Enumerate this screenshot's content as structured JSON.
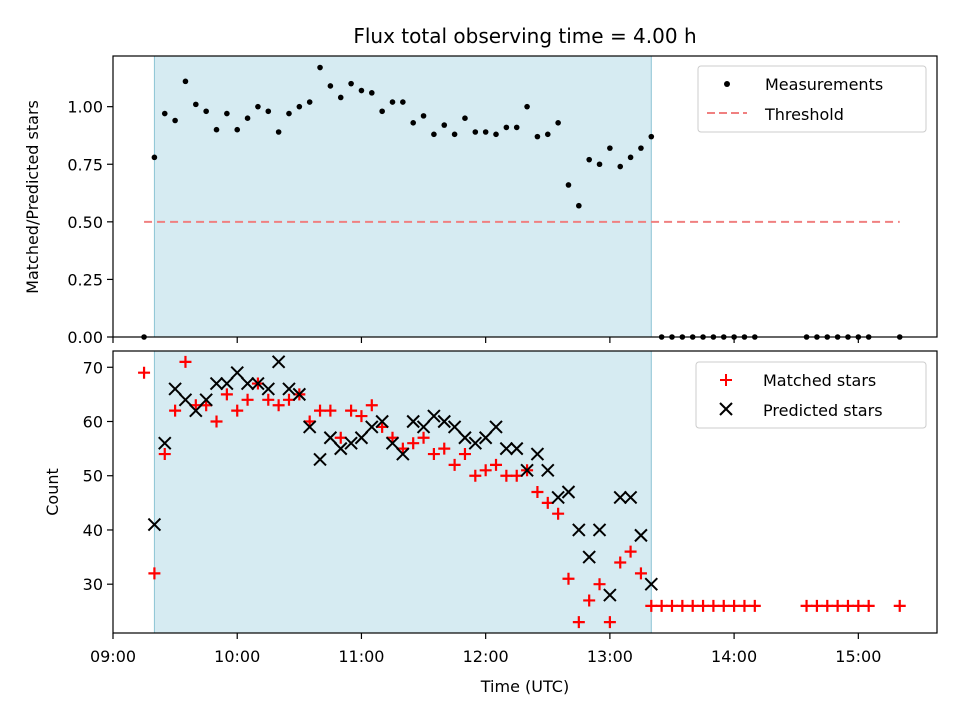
{
  "chart_data": [
    {
      "type": "scatter",
      "title": "Flux total observing time = 4.00 h",
      "ylabel": "Matched/Predicted stars",
      "xlabel": "",
      "ylim": [
        0.0,
        1.22
      ],
      "xlim": [
        "09:00",
        "15:38"
      ],
      "yticks": [
        "0.00",
        "0.25",
        "0.50",
        "0.75",
        "1.00"
      ],
      "shaded_region": {
        "start": "09:20",
        "end": "13:20",
        "color": "#add8e6"
      },
      "legend_position": "top-right",
      "series": [
        {
          "name": "Measurements",
          "marker": "dot",
          "color": "#000000",
          "points": [
            [
              "09:15",
              0.0
            ],
            [
              "09:20",
              0.78
            ],
            [
              "09:25",
              0.97
            ],
            [
              "09:30",
              0.94
            ],
            [
              "09:35",
              1.11
            ],
            [
              "09:40",
              1.01
            ],
            [
              "09:45",
              0.98
            ],
            [
              "09:50",
              0.9
            ],
            [
              "09:55",
              0.97
            ],
            [
              "10:00",
              0.9
            ],
            [
              "10:05",
              0.95
            ],
            [
              "10:10",
              1.0
            ],
            [
              "10:15",
              0.98
            ],
            [
              "10:20",
              0.89
            ],
            [
              "10:25",
              0.97
            ],
            [
              "10:30",
              1.0
            ],
            [
              "10:35",
              1.02
            ],
            [
              "10:40",
              1.17
            ],
            [
              "10:45",
              1.09
            ],
            [
              "10:50",
              1.04
            ],
            [
              "10:55",
              1.1
            ],
            [
              "11:00",
              1.07
            ],
            [
              "11:05",
              1.06
            ],
            [
              "11:10",
              0.98
            ],
            [
              "11:15",
              1.02
            ],
            [
              "11:20",
              1.02
            ],
            [
              "11:25",
              0.93
            ],
            [
              "11:30",
              0.96
            ],
            [
              "11:35",
              0.88
            ],
            [
              "11:40",
              0.92
            ],
            [
              "11:45",
              0.88
            ],
            [
              "11:50",
              0.95
            ],
            [
              "11:55",
              0.89
            ],
            [
              "12:00",
              0.89
            ],
            [
              "12:05",
              0.88
            ],
            [
              "12:10",
              0.91
            ],
            [
              "12:15",
              0.91
            ],
            [
              "12:20",
              1.0
            ],
            [
              "12:25",
              0.87
            ],
            [
              "12:30",
              0.88
            ],
            [
              "12:35",
              0.93
            ],
            [
              "12:40",
              0.66
            ],
            [
              "12:45",
              0.57
            ],
            [
              "12:50",
              0.77
            ],
            [
              "12:55",
              0.75
            ],
            [
              "13:00",
              0.82
            ],
            [
              "13:05",
              0.74
            ],
            [
              "13:10",
              0.78
            ],
            [
              "13:15",
              0.82
            ],
            [
              "13:20",
              0.87
            ],
            [
              "13:25",
              0.0
            ],
            [
              "13:30",
              0.0
            ],
            [
              "13:35",
              0.0
            ],
            [
              "13:40",
              0.0
            ],
            [
              "13:45",
              0.0
            ],
            [
              "13:50",
              0.0
            ],
            [
              "13:55",
              0.0
            ],
            [
              "14:00",
              0.0
            ],
            [
              "14:05",
              0.0
            ],
            [
              "14:10",
              0.0
            ],
            [
              "14:35",
              0.0
            ],
            [
              "14:40",
              0.0
            ],
            [
              "14:45",
              0.0
            ],
            [
              "14:50",
              0.0
            ],
            [
              "14:55",
              0.0
            ],
            [
              "15:00",
              0.0
            ],
            [
              "15:05",
              0.0
            ],
            [
              "15:20",
              0.0
            ]
          ]
        },
        {
          "name": "Threshold",
          "marker": "dashed-line",
          "color": "#f08080",
          "points": [
            [
              "09:15",
              0.5
            ],
            [
              "15:20",
              0.5
            ]
          ]
        }
      ]
    },
    {
      "type": "scatter",
      "title": "",
      "ylabel": "Count",
      "xlabel": "Time (UTC)",
      "ylim": [
        21,
        73
      ],
      "xlim": [
        "09:00",
        "15:38"
      ],
      "yticks": [
        "30",
        "40",
        "50",
        "60",
        "70"
      ],
      "xticks": [
        "09:00",
        "10:00",
        "11:00",
        "12:00",
        "13:00",
        "14:00",
        "15:00"
      ],
      "shaded_region": {
        "start": "09:20",
        "end": "13:20",
        "color": "#add8e6"
      },
      "legend_position": "top-right",
      "series": [
        {
          "name": "Matched stars",
          "marker": "plus",
          "color": "#ff0000",
          "points": [
            [
              "09:15",
              69
            ],
            [
              "09:20",
              32
            ],
            [
              "09:25",
              54
            ],
            [
              "09:30",
              62
            ],
            [
              "09:35",
              71
            ],
            [
              "09:40",
              63
            ],
            [
              "09:45",
              63
            ],
            [
              "09:50",
              60
            ],
            [
              "09:55",
              65
            ],
            [
              "10:00",
              62
            ],
            [
              "10:05",
              64
            ],
            [
              "10:10",
              67
            ],
            [
              "10:15",
              64
            ],
            [
              "10:20",
              63
            ],
            [
              "10:25",
              64
            ],
            [
              "10:30",
              65
            ],
            [
              "10:35",
              60
            ],
            [
              "10:40",
              62
            ],
            [
              "10:45",
              62
            ],
            [
              "10:50",
              57
            ],
            [
              "10:55",
              62
            ],
            [
              "11:00",
              61
            ],
            [
              "11:05",
              63
            ],
            [
              "11:10",
              59
            ],
            [
              "11:15",
              57
            ],
            [
              "11:20",
              55
            ],
            [
              "11:25",
              56
            ],
            [
              "11:30",
              57
            ],
            [
              "11:35",
              54
            ],
            [
              "11:40",
              55
            ],
            [
              "11:45",
              52
            ],
            [
              "11:50",
              54
            ],
            [
              "11:55",
              50
            ],
            [
              "12:00",
              51
            ],
            [
              "12:05",
              52
            ],
            [
              "12:10",
              50
            ],
            [
              "12:15",
              50
            ],
            [
              "12:20",
              51
            ],
            [
              "12:25",
              47
            ],
            [
              "12:30",
              45
            ],
            [
              "12:35",
              43
            ],
            [
              "12:40",
              31
            ],
            [
              "12:45",
              23
            ],
            [
              "12:50",
              27
            ],
            [
              "12:55",
              30
            ],
            [
              "13:00",
              23
            ],
            [
              "13:05",
              34
            ],
            [
              "13:10",
              36
            ],
            [
              "13:15",
              32
            ],
            [
              "13:20",
              26
            ],
            [
              "13:25",
              26
            ],
            [
              "13:30",
              26
            ],
            [
              "13:35",
              26
            ],
            [
              "13:40",
              26
            ],
            [
              "13:45",
              26
            ],
            [
              "13:50",
              26
            ],
            [
              "13:55",
              26
            ],
            [
              "14:00",
              26
            ],
            [
              "14:05",
              26
            ],
            [
              "14:10",
              26
            ],
            [
              "14:35",
              26
            ],
            [
              "14:40",
              26
            ],
            [
              "14:45",
              26
            ],
            [
              "14:50",
              26
            ],
            [
              "14:55",
              26
            ],
            [
              "15:00",
              26
            ],
            [
              "15:05",
              26
            ],
            [
              "15:20",
              26
            ]
          ]
        },
        {
          "name": "Predicted stars",
          "marker": "x",
          "color": "#000000",
          "points": [
            [
              "09:20",
              41
            ],
            [
              "09:25",
              56
            ],
            [
              "09:30",
              66
            ],
            [
              "09:35",
              64
            ],
            [
              "09:40",
              62
            ],
            [
              "09:45",
              64
            ],
            [
              "09:50",
              67
            ],
            [
              "09:55",
              67
            ],
            [
              "10:00",
              69
            ],
            [
              "10:05",
              67
            ],
            [
              "10:10",
              67
            ],
            [
              "10:15",
              66
            ],
            [
              "10:20",
              71
            ],
            [
              "10:25",
              66
            ],
            [
              "10:30",
              65
            ],
            [
              "10:35",
              59
            ],
            [
              "10:40",
              53
            ],
            [
              "10:45",
              57
            ],
            [
              "10:50",
              55
            ],
            [
              "10:55",
              56
            ],
            [
              "11:00",
              57
            ],
            [
              "11:05",
              59
            ],
            [
              "11:10",
              60
            ],
            [
              "11:15",
              56
            ],
            [
              "11:20",
              54
            ],
            [
              "11:25",
              60
            ],
            [
              "11:30",
              59
            ],
            [
              "11:35",
              61
            ],
            [
              "11:40",
              60
            ],
            [
              "11:45",
              59
            ],
            [
              "11:50",
              57
            ],
            [
              "11:55",
              56
            ],
            [
              "12:00",
              57
            ],
            [
              "12:05",
              59
            ],
            [
              "12:10",
              55
            ],
            [
              "12:15",
              55
            ],
            [
              "12:20",
              51
            ],
            [
              "12:25",
              54
            ],
            [
              "12:30",
              51
            ],
            [
              "12:35",
              46
            ],
            [
              "12:40",
              47
            ],
            [
              "12:45",
              40
            ],
            [
              "12:50",
              35
            ],
            [
              "12:55",
              40
            ],
            [
              "13:00",
              28
            ],
            [
              "13:05",
              46
            ],
            [
              "13:10",
              46
            ],
            [
              "13:15",
              39
            ],
            [
              "13:20",
              30
            ]
          ]
        }
      ]
    }
  ]
}
